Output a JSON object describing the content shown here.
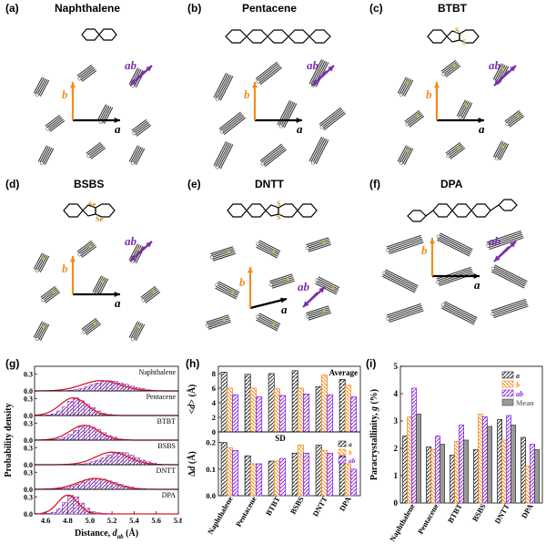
{
  "structure_panels": [
    {
      "label": "(a)",
      "title": "Naphthalene"
    },
    {
      "label": "(b)",
      "title": "Pentacene"
    },
    {
      "label": "(c)",
      "title": "BTBT"
    },
    {
      "label": "(d)",
      "title": "BSBS"
    },
    {
      "label": "(e)",
      "title": "DNTT"
    },
    {
      "label": "(f)",
      "title": "DPA"
    }
  ],
  "atom_labels": {
    "sulfur": "S",
    "selenium": "Se"
  },
  "vector_labels": {
    "a": "a",
    "b": "b",
    "ab": "ab"
  },
  "colors": {
    "vector_a": "#000000",
    "vector_b": "#f28c1c",
    "vector_ab": "#7b2fa8",
    "molecule": "#3a3a3a",
    "sulfur_atom": "#d9b400",
    "hist_fill": "#7b2fa8",
    "fit_curve": "#e0162b",
    "bar_a": "#2b2b2b",
    "bar_b": "#f28c1c",
    "bar_ab": "#8a2be2",
    "bar_mean": "#9a9a9a"
  },
  "chart_data": [
    {
      "panel": "(g)",
      "type": "histogram",
      "xlabel": "Distance, d_ab (Å)",
      "xlabel_main": "Distance, ",
      "xlabel_var": "d",
      "xlabel_sub": "ab",
      "xlabel_unit": " (Å)",
      "ylabel": "Probability density",
      "xlim": [
        4.5,
        5.8
      ],
      "xticks": [
        "4.6",
        "4.8",
        "5.0",
        "5.2",
        "5.4",
        "5.6",
        "5.8"
      ],
      "yticks": [
        "0.0",
        "0.3"
      ],
      "ylim": [
        0,
        0.4
      ],
      "bin_edges": [
        4.5,
        4.55,
        4.6,
        4.65,
        4.7,
        4.75,
        4.8,
        4.85,
        4.9,
        4.95,
        5.0,
        5.05,
        5.1,
        5.15,
        5.2,
        5.25,
        5.3,
        5.35,
        5.4,
        5.45,
        5.5,
        5.55,
        5.6,
        5.65,
        5.7,
        5.75,
        5.8
      ],
      "series": [
        {
          "name": "Naphthalene",
          "mean": 5.1,
          "sd": 0.17,
          "values": [
            0,
            0,
            0,
            0,
            0,
            0,
            0.01,
            0.02,
            0.04,
            0.07,
            0.11,
            0.14,
            0.17,
            0.18,
            0.17,
            0.14,
            0.12,
            0.09,
            0.06,
            0.04,
            0.02,
            0.01,
            0,
            0,
            0,
            0
          ]
        },
        {
          "name": "Pentacene",
          "mean": 4.85,
          "sd": 0.12,
          "values": [
            0,
            0,
            0.01,
            0.03,
            0.08,
            0.15,
            0.25,
            0.31,
            0.26,
            0.2,
            0.14,
            0.08,
            0.04,
            0.02,
            0.01,
            0,
            0,
            0,
            0,
            0,
            0,
            0,
            0,
            0,
            0,
            0
          ]
        },
        {
          "name": "BTBT",
          "mean": 4.95,
          "sd": 0.13,
          "values": [
            0,
            0,
            0,
            0.01,
            0.02,
            0.05,
            0.1,
            0.17,
            0.23,
            0.26,
            0.23,
            0.19,
            0.13,
            0.08,
            0.05,
            0.02,
            0.01,
            0,
            0,
            0,
            0,
            0,
            0,
            0,
            0,
            0
          ]
        },
        {
          "name": "BSBS",
          "mean": 5.2,
          "sd": 0.15,
          "values": [
            0,
            0,
            0,
            0,
            0,
            0,
            0,
            0,
            0.01,
            0.02,
            0.05,
            0.08,
            0.12,
            0.17,
            0.2,
            0.22,
            0.21,
            0.17,
            0.12,
            0.08,
            0.05,
            0.03,
            0.01,
            0,
            0,
            0
          ]
        },
        {
          "name": "DNTT",
          "mean": 5.05,
          "sd": 0.16,
          "values": [
            0,
            0,
            0,
            0,
            0.01,
            0.02,
            0.05,
            0.09,
            0.13,
            0.17,
            0.19,
            0.19,
            0.18,
            0.15,
            0.12,
            0.09,
            0.06,
            0.04,
            0.02,
            0.01,
            0,
            0,
            0,
            0,
            0,
            0
          ]
        },
        {
          "name": "DPA",
          "mean": 4.8,
          "sd": 0.09,
          "values": [
            0,
            0,
            0.01,
            0.03,
            0.09,
            0.2,
            0.33,
            0.3,
            0.19,
            0.1,
            0.04,
            0.02,
            0.01,
            0,
            0,
            0,
            0,
            0,
            0,
            0,
            0,
            0,
            0,
            0,
            0,
            0
          ]
        }
      ]
    },
    {
      "panel": "(h)",
      "type": "bar",
      "categories": [
        "Naphthalene",
        "Pentacene",
        "BTBT",
        "BSBS",
        "DNTT",
        "DPA"
      ],
      "top": {
        "title": "Average",
        "ylabel": "<d> (Å)",
        "ylabel_var": "d",
        "ylabel_unit": " (Å)",
        "ylim": [
          0,
          9
        ],
        "yticks": [
          "0",
          "2",
          "4",
          "6",
          "8"
        ],
        "series": [
          {
            "name": "a",
            "values": [
              8.2,
              7.9,
              8.0,
              8.4,
              6.2,
              7.2
            ]
          },
          {
            "name": "b",
            "values": [
              6.0,
              6.0,
              5.9,
              6.0,
              7.8,
              6.4
            ]
          },
          {
            "name": "ab",
            "values": [
              5.1,
              4.8,
              5.0,
              5.2,
              5.1,
              4.8
            ]
          }
        ]
      },
      "bottom": {
        "title": "SD",
        "ylabel": "Δd (Å)",
        "ylabel_delta": "Δ",
        "ylabel_var": "d",
        "ylabel_unit": " (Å)",
        "ylim": [
          0,
          0.24
        ],
        "yticks": [
          "0.0",
          "0.1",
          "0.2"
        ],
        "series": [
          {
            "name": "a",
            "values": [
              0.2,
              0.15,
              0.13,
              0.16,
              0.19,
              0.15
            ]
          },
          {
            "name": "b",
            "values": [
              0.18,
              0.12,
              0.13,
              0.19,
              0.17,
              0.12
            ]
          },
          {
            "name": "ab",
            "values": [
              0.17,
              0.12,
              0.14,
              0.16,
              0.16,
              0.1
            ]
          }
        ]
      }
    },
    {
      "panel": "(i)",
      "type": "bar",
      "categories": [
        "Naphthalene",
        "Pentacene",
        "BTBT",
        "BSBS",
        "DNTT",
        "DPA"
      ],
      "ylabel": "Paracrystallinity, g (%)",
      "ylabel_main": "Paracrystallinity, ",
      "ylabel_var": "g",
      "ylabel_unit": " (%)",
      "ylim": [
        0,
        5
      ],
      "yticks": [
        "0",
        "1",
        "2",
        "3",
        "4",
        "5"
      ],
      "series": [
        {
          "name": "a",
          "values": [
            2.45,
            2.05,
            1.75,
            1.95,
            3.05,
            2.4
          ]
        },
        {
          "name": "b",
          "values": [
            3.15,
            1.95,
            2.25,
            3.25,
            2.3,
            1.35
          ]
        },
        {
          "name": "ab",
          "values": [
            4.2,
            2.45,
            2.85,
            3.15,
            3.2,
            2.15
          ]
        },
        {
          "name": "Mean",
          "values": [
            3.25,
            2.15,
            2.3,
            2.8,
            2.85,
            1.95
          ]
        }
      ]
    }
  ]
}
